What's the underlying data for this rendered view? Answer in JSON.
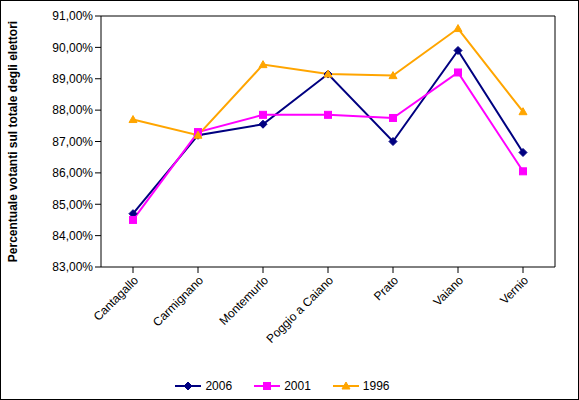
{
  "chart_data": {
    "type": "line",
    "y_label": "Percentuale votanti sul totale degli elettori",
    "categories": [
      "Cantagallo",
      "Carmignano",
      "Montemurlo",
      "Poggio a Caiano",
      "Prato",
      "Vaiano",
      "Vernio"
    ],
    "series": [
      {
        "name": "2006",
        "color": "#000080",
        "marker": "diamond",
        "values": [
          84.7,
          87.2,
          87.55,
          89.15,
          87.0,
          89.9,
          86.65
        ]
      },
      {
        "name": "2001",
        "color": "#FF00FF",
        "marker": "square",
        "values": [
          84.5,
          87.3,
          87.85,
          87.85,
          87.75,
          89.2,
          86.05
        ]
      },
      {
        "name": "1996",
        "color": "#FFA500",
        "marker": "triangle",
        "values": [
          87.7,
          87.2,
          89.45,
          89.15,
          89.1,
          90.6,
          87.95
        ]
      }
    ],
    "ylim": [
      83,
      91
    ],
    "yticks": [
      {
        "value": 83,
        "label": "83,00%"
      },
      {
        "value": 84,
        "label": "84,00%"
      },
      {
        "value": 85,
        "label": "85,00%"
      },
      {
        "value": 86,
        "label": "86,00%"
      },
      {
        "value": 87,
        "label": "87,00%"
      },
      {
        "value": 88,
        "label": "88,00%"
      },
      {
        "value": 89,
        "label": "89,00%"
      },
      {
        "value": 90,
        "label": "90,00%"
      },
      {
        "value": 91,
        "label": "91,00%"
      }
    ],
    "grid": false,
    "legend": "bottom"
  }
}
